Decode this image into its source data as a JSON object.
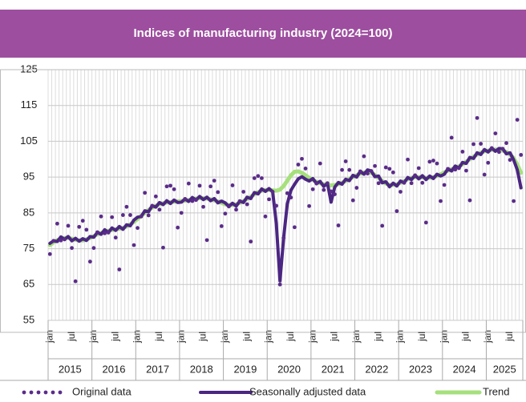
{
  "chart_data": {
    "type": "line",
    "title": "Indices of manufacturing industry (2024=100)",
    "categories": [
      "jan",
      null,
      null,
      null,
      null,
      null,
      "jul",
      null,
      null,
      null,
      null,
      null,
      "jan",
      null,
      null,
      null,
      null,
      null,
      "jul",
      null,
      null,
      null,
      null,
      null,
      "jan",
      null,
      null,
      null,
      null,
      null,
      "jul",
      null,
      null,
      null,
      null,
      null,
      "jan",
      null,
      null,
      null,
      null,
      null,
      "jul",
      null,
      null,
      null,
      null,
      null,
      "jan",
      null,
      null,
      null,
      null,
      null,
      "jul",
      null,
      null,
      null,
      null,
      null,
      "jan",
      null,
      null,
      null,
      null,
      null,
      "jul",
      null,
      null,
      null,
      null,
      null,
      "jan",
      null,
      null,
      null,
      null,
      null,
      "jul",
      null,
      null,
      null,
      null,
      null,
      "jan",
      null,
      null,
      null,
      null,
      null,
      "jul",
      null,
      null,
      null,
      null,
      null,
      "jan",
      null,
      null,
      null,
      null,
      null,
      "jul",
      null,
      null,
      null,
      null,
      null,
      "jan",
      null,
      null,
      null,
      null,
      null,
      "jul",
      null,
      null,
      null,
      null,
      null,
      "jan",
      null,
      null,
      null,
      null,
      null,
      "jul",
      null,
      null,
      null
    ],
    "year_labels": [
      "2015",
      "2016",
      "2017",
      "2018",
      "2019",
      "2020",
      "2021",
      "2022",
      "2023",
      "2024",
      "2025"
    ],
    "ylim": [
      55,
      125
    ],
    "yticks": [
      55,
      65,
      75,
      85,
      95,
      105,
      115,
      125
    ],
    "grid": true,
    "legend": "bottom",
    "series": [
      {
        "name": "Original data",
        "color": "#5b2c8a",
        "style": "dots",
        "values": [
          73.5,
          77.2,
          82,
          77.3,
          77.6,
          81.4,
          75.2,
          65.9,
          81.1,
          82.8,
          80.3,
          71.4,
          75.2,
          79.6,
          84,
          79.3,
          79.5,
          83.8,
          78.1,
          69.2,
          84.4,
          86.7,
          84.4,
          76,
          80.8,
          84,
          90.6,
          84.3,
          87,
          89.6,
          85.9,
          75.3,
          92.4,
          92.6,
          91.6,
          80.9,
          85,
          88.9,
          93.2,
          88.3,
          88.6,
          92.6,
          86.7,
          77.4,
          92.4,
          94,
          90.8,
          81.3,
          84.8,
          86.8,
          92.7,
          85.9,
          88.3,
          90.9,
          87.4,
          77,
          94.7,
          95.3,
          94.7,
          84,
          88.8,
          90.9,
          87,
          65,
          78,
          90.5,
          89.3,
          81,
          98.5,
          100.1,
          97.4,
          86.9,
          91.6,
          93.2,
          98.8,
          91.4,
          93.3,
          91,
          90.2,
          81.5,
          97,
          99.4,
          97,
          88.5,
          92,
          96.6,
          100.8,
          96,
          96.7,
          98.1,
          93.3,
          81.4,
          97.7,
          97.3,
          96.3,
          85.5,
          90.9,
          93.4,
          99.9,
          93.3,
          95.5,
          97.5,
          93.4,
          82.3,
          99.3,
          99.6,
          98.8,
          88.3,
          92.8,
          97.3,
          106,
          97.1,
          97.5,
          102.1,
          96.8,
          88.5,
          104.2,
          111.5,
          104.3,
          95.7,
          99,
          103.1,
          107.2,
          102,
          102.9,
          104.5,
          99.8,
          88.3,
          111,
          101.2
        ]
      },
      {
        "name": "Seasonally adjusted data",
        "color": "#4b2682",
        "style": "thick",
        "values": [
          76.5,
          77.2,
          77,
          78.3,
          77.6,
          78.4,
          77.2,
          77.9,
          77.1,
          77.8,
          77.3,
          78.4,
          78.2,
          79.6,
          79,
          80.3,
          79.5,
          80.8,
          80.1,
          81.2,
          80.4,
          81.7,
          81.4,
          83,
          83.8,
          84,
          85.6,
          85.3,
          87,
          86.6,
          87.9,
          87.3,
          88.4,
          87.6,
          88.6,
          87.9,
          88,
          88.9,
          88.2,
          89.3,
          88.6,
          89.6,
          88.7,
          89.4,
          88.4,
          89,
          87.8,
          88.3,
          87.8,
          86.8,
          87.7,
          86.9,
          88.3,
          87.9,
          89.4,
          89,
          90.7,
          90.3,
          91.7,
          91,
          91.8,
          90.9,
          82,
          66,
          78,
          87.5,
          91.3,
          93,
          94.5,
          95.1,
          94.4,
          93.9,
          94.6,
          93.2,
          93.8,
          92.4,
          93.3,
          88,
          92.2,
          93.5,
          93,
          94.4,
          94,
          95.5,
          95,
          96.6,
          95.8,
          97,
          96.7,
          95.1,
          95.3,
          93.4,
          93.7,
          92.3,
          93.3,
          92.5,
          93.9,
          93.4,
          94.9,
          94.3,
          95.5,
          94.5,
          95.4,
          94.3,
          95.3,
          94.6,
          95.8,
          95.3,
          95.8,
          97.3,
          96.7,
          98.1,
          97.5,
          99.1,
          98.8,
          100.5,
          100.2,
          101.8,
          101.3,
          102.7,
          102,
          103.1,
          102.2,
          103,
          102.9,
          101.5,
          101.8,
          99.8,
          97,
          92
        ]
      },
      {
        "name": "Trend",
        "color": "#a6e07c",
        "style": "line",
        "values": [
          76,
          76.8,
          77.4,
          77.8,
          78,
          78,
          77.8,
          77.5,
          77.3,
          77.3,
          77.6,
          78,
          78.5,
          79,
          79.4,
          79.8,
          80,
          80.2,
          80.4,
          80.6,
          80.8,
          81.2,
          81.8,
          82.5,
          83.3,
          84.2,
          85,
          85.8,
          86.5,
          87,
          87.4,
          87.7,
          87.9,
          88,
          88.1,
          88.2,
          88.3,
          88.4,
          88.6,
          88.8,
          89,
          89.1,
          89.1,
          89,
          88.8,
          88.5,
          88.2,
          87.8,
          87.4,
          87.2,
          87.2,
          87.4,
          87.8,
          88.3,
          88.9,
          89.5,
          90.2,
          90.8,
          91.2,
          91.4,
          91.4,
          91.3,
          91.2,
          91.5,
          92.5,
          94,
          95.5,
          96.5,
          96.6,
          96.2,
          95.5,
          94.8,
          94.2,
          93.7,
          93.3,
          93,
          92.8,
          92.7,
          92.8,
          93,
          93.4,
          93.9,
          94.5,
          95,
          95.5,
          96,
          96.3,
          96.4,
          96.2,
          95.6,
          94.8,
          93.9,
          93.2,
          92.8,
          92.8,
          93,
          93.4,
          93.9,
          94.4,
          94.8,
          95,
          95,
          94.9,
          94.8,
          94.8,
          95,
          95.3,
          95.8,
          96.3,
          96.8,
          97.2,
          97.6,
          98,
          98.6,
          99.3,
          100,
          100.7,
          101.3,
          101.8,
          102.2,
          102.4,
          102.6,
          102.7,
          102.6,
          102.4,
          102,
          101.3,
          100.3,
          98.5,
          96.2
        ]
      }
    ]
  }
}
